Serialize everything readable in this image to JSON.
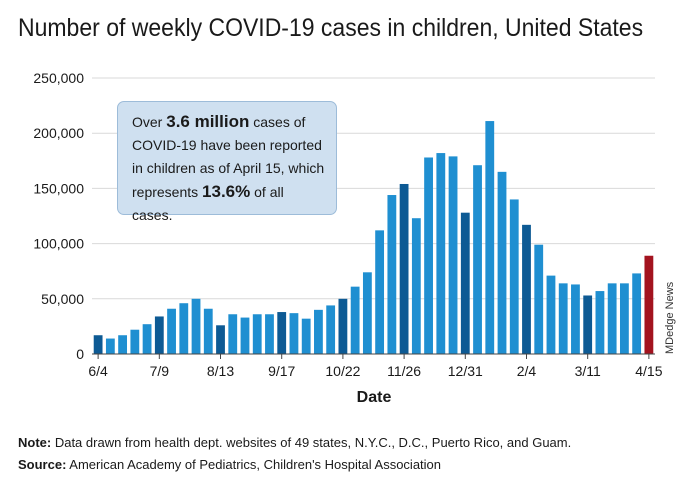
{
  "title": "Number of weekly COVID-19 cases in children, United States",
  "callout": {
    "line1_pre": "Over ",
    "line1_big": "3.6 million",
    "line1_post": " cases of",
    "line2": "COVID-19 have been reported",
    "line3": "in children as of April 15, which",
    "line4_pre": "represents ",
    "line4_big": "13.6%",
    "line4_post": " of all cases."
  },
  "note": {
    "label": "Note:",
    "text": " Data drawn from health dept. websites of 49 states, N.Y.C., D.C., Puerto Rico, and Guam."
  },
  "source": {
    "label": "Source:",
    "text": " American Academy of Pediatrics, Children's Hospital Association"
  },
  "credit": "MDedge News",
  "colors": {
    "bar": "#1f8fd1",
    "bar_dark": "#0d5a94",
    "bar_last": "#a3131f",
    "grid": "#d9d9d9",
    "axis": "#444444"
  },
  "chart_data": {
    "type": "bar",
    "xlabel": "Date",
    "ylabel": "",
    "ylim": [
      0,
      250000
    ],
    "yticks": [
      0,
      50000,
      100000,
      150000,
      200000,
      250000
    ],
    "ytick_labels": [
      "0",
      "50,000",
      "100,000",
      "150,000",
      "200,000",
      "250,000"
    ],
    "xtick_labels": [
      {
        "label": "6/4",
        "index": 0
      },
      {
        "label": "7/9",
        "index": 5
      },
      {
        "label": "8/13",
        "index": 10
      },
      {
        "label": "9/17",
        "index": 15
      },
      {
        "label": "10/22",
        "index": 20
      },
      {
        "label": "11/26",
        "index": 25
      },
      {
        "label": "12/31",
        "index": 30
      },
      {
        "label": "2/4",
        "index": 35
      },
      {
        "label": "3/11",
        "index": 40
      },
      {
        "label": "4/15",
        "index": 45
      }
    ],
    "grid": true,
    "values": [
      17000,
      14000,
      17000,
      22000,
      27000,
      34000,
      41000,
      46000,
      50000,
      41000,
      26000,
      36000,
      33000,
      36000,
      36000,
      38000,
      37000,
      32000,
      40000,
      44000,
      50000,
      61000,
      74000,
      112000,
      144000,
      154000,
      123000,
      178000,
      182000,
      179000,
      128000,
      171000,
      211000,
      165000,
      140000,
      117000,
      99000,
      71000,
      64000,
      63000,
      53000,
      57000,
      64000,
      64000,
      73000,
      89000
    ],
    "highlight_dark_indices": [
      0,
      5,
      10,
      15,
      20,
      25,
      30,
      35,
      40
    ],
    "highlight_last_index": 45
  }
}
